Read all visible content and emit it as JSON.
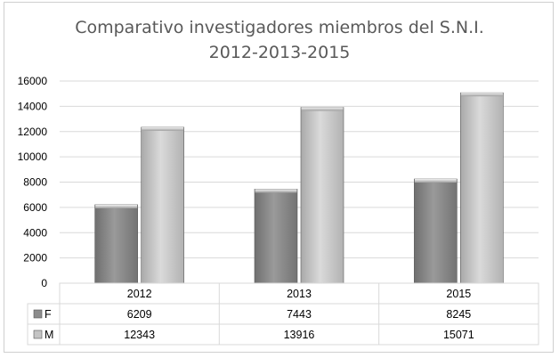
{
  "chart_data": {
    "type": "bar",
    "title": "Comparativo investigadores miembros del S.N.I.",
    "subtitle": "2012-2013-2015",
    "categories": [
      "2012",
      "2013",
      "2015"
    ],
    "series": [
      {
        "name": "F",
        "values": [
          6209,
          7443,
          8245
        ],
        "color": "#8c8c8c"
      },
      {
        "name": "M",
        "values": [
          12343,
          13916,
          15071
        ],
        "color": "#c4c4c4"
      }
    ],
    "ylim": [
      0,
      16000
    ],
    "yticks": [
      "0",
      "2000",
      "4000",
      "6000",
      "8000",
      "10000",
      "12000",
      "14000",
      "16000"
    ],
    "grid": true,
    "legend": "data-table",
    "data_table": {
      "rows": [
        {
          "label": "F",
          "cells": [
            "6209",
            "7443",
            "8245"
          ]
        },
        {
          "label": "M",
          "cells": [
            "12343",
            "13916",
            "15071"
          ]
        }
      ]
    }
  }
}
